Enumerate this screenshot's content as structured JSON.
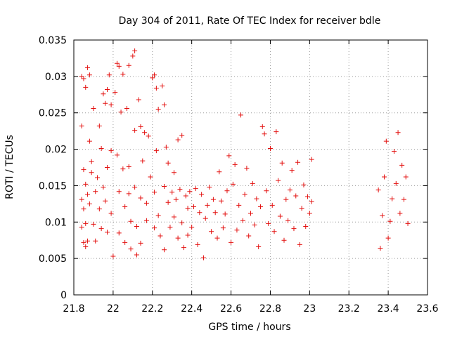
{
  "chart_data": {
    "type": "scatter",
    "title": "Day 304 of 2011, Rate Of TEC Index for receiver bdle",
    "xlabel": "GPS time / hours",
    "ylabel": "ROTI / TECUs",
    "xlim": [
      21.8,
      23.6
    ],
    "ylim": [
      0,
      0.035
    ],
    "x_ticks": [
      21.8,
      22.0,
      22.2,
      22.4,
      22.6,
      22.8,
      23.0,
      23.2,
      23.4,
      23.6
    ],
    "x_tick_labels": [
      "21.8",
      "22",
      "22.2",
      "22.4",
      "22.6",
      "22.8",
      "23",
      "23.2",
      "23.4",
      "23.6"
    ],
    "y_ticks": [
      0,
      0.005,
      0.01,
      0.015,
      0.02,
      0.025,
      0.03,
      0.035
    ],
    "y_tick_labels": [
      "0",
      "0.005",
      "0.01",
      "0.015",
      "0.02",
      "0.025",
      "0.03",
      "0.035"
    ],
    "grid": true,
    "marker": "+",
    "color": "#e3100f",
    "series": [
      {
        "name": "ROTI",
        "points": [
          [
            21.84,
            0.0232
          ],
          [
            21.84,
            0.03
          ],
          [
            21.85,
            0.0297
          ],
          [
            21.86,
            0.0285
          ],
          [
            21.87,
            0.0312
          ],
          [
            21.88,
            0.0302
          ],
          [
            21.85,
            0.0172
          ],
          [
            21.86,
            0.0152
          ],
          [
            21.84,
            0.0131
          ],
          [
            21.87,
            0.0138
          ],
          [
            21.85,
            0.0118
          ],
          [
            21.86,
            0.0098
          ],
          [
            21.84,
            0.0093
          ],
          [
            21.85,
            0.0072
          ],
          [
            21.86,
            0.0066
          ],
          [
            21.87,
            0.0074
          ],
          [
            21.88,
            0.0125
          ],
          [
            21.89,
            0.0168
          ],
          [
            21.88,
            0.0211
          ],
          [
            21.89,
            0.0183
          ],
          [
            21.9,
            0.0256
          ],
          [
            21.91,
            0.0142
          ],
          [
            21.9,
            0.0097
          ],
          [
            21.91,
            0.0074
          ],
          [
            21.92,
            0.0161
          ],
          [
            21.93,
            0.0232
          ],
          [
            21.93,
            0.0118
          ],
          [
            21.94,
            0.0201
          ],
          [
            21.95,
            0.0276
          ],
          [
            21.95,
            0.0148
          ],
          [
            21.94,
            0.0091
          ],
          [
            21.96,
            0.0263
          ],
          [
            21.97,
            0.0282
          ],
          [
            21.97,
            0.0175
          ],
          [
            21.96,
            0.0129
          ],
          [
            21.97,
            0.0086
          ],
          [
            21.98,
            0.0302
          ],
          [
            21.99,
            0.0261
          ],
          [
            21.99,
            0.0198
          ],
          [
            21.99,
            0.0112
          ],
          [
            22.0,
            0.0053
          ],
          [
            22.01,
            0.0278
          ],
          [
            22.02,
            0.0318
          ],
          [
            22.02,
            0.0192
          ],
          [
            22.03,
            0.0314
          ],
          [
            22.03,
            0.0142
          ],
          [
            22.03,
            0.0085
          ],
          [
            22.04,
            0.0251
          ],
          [
            22.05,
            0.0303
          ],
          [
            22.05,
            0.0173
          ],
          [
            22.06,
            0.0121
          ],
          [
            22.06,
            0.0072
          ],
          [
            22.07,
            0.0256
          ],
          [
            22.08,
            0.0315
          ],
          [
            22.08,
            0.0176
          ],
          [
            22.08,
            0.0139
          ],
          [
            22.09,
            0.0101
          ],
          [
            22.09,
            0.0063
          ],
          [
            22.1,
            0.0328
          ],
          [
            22.11,
            0.0335
          ],
          [
            22.11,
            0.0226
          ],
          [
            22.11,
            0.0148
          ],
          [
            22.12,
            0.0094
          ],
          [
            22.12,
            0.0055
          ],
          [
            22.13,
            0.0268
          ],
          [
            22.14,
            0.0231
          ],
          [
            22.14,
            0.0133
          ],
          [
            22.14,
            0.0071
          ],
          [
            22.15,
            0.0184
          ],
          [
            22.16,
            0.0223
          ],
          [
            22.17,
            0.0102
          ],
          [
            22.17,
            0.0126
          ],
          [
            22.18,
            0.0218
          ],
          [
            22.19,
            0.0162
          ],
          [
            22.2,
            0.0298
          ],
          [
            22.21,
            0.0302
          ],
          [
            22.21,
            0.0092
          ],
          [
            22.21,
            0.0141
          ],
          [
            22.22,
            0.0284
          ],
          [
            22.22,
            0.0198
          ],
          [
            22.23,
            0.0255
          ],
          [
            22.23,
            0.0109
          ],
          [
            22.24,
            0.0081
          ],
          [
            22.25,
            0.0287
          ],
          [
            22.26,
            0.0261
          ],
          [
            22.26,
            0.0149
          ],
          [
            22.26,
            0.0062
          ],
          [
            22.27,
            0.0203
          ],
          [
            22.28,
            0.0181
          ],
          [
            22.28,
            0.0127
          ],
          [
            22.29,
            0.0093
          ],
          [
            22.3,
            0.0141
          ],
          [
            22.31,
            0.0168
          ],
          [
            22.31,
            0.0107
          ],
          [
            22.32,
            0.0131
          ],
          [
            22.33,
            0.0213
          ],
          [
            22.33,
            0.0078
          ],
          [
            22.34,
            0.0145
          ],
          [
            22.35,
            0.0219
          ],
          [
            22.35,
            0.0099
          ],
          [
            22.36,
            0.0065
          ],
          [
            22.37,
            0.0136
          ],
          [
            22.38,
            0.0119
          ],
          [
            22.38,
            0.0082
          ],
          [
            22.39,
            0.0142
          ],
          [
            22.4,
            0.0093
          ],
          [
            22.41,
            0.0121
          ],
          [
            22.42,
            0.0146
          ],
          [
            22.43,
            0.0069
          ],
          [
            22.44,
            0.0113
          ],
          [
            22.45,
            0.0138
          ],
          [
            22.46,
            0.0051
          ],
          [
            22.47,
            0.0105
          ],
          [
            22.48,
            0.0123
          ],
          [
            22.49,
            0.0148
          ],
          [
            22.5,
            0.0087
          ],
          [
            22.51,
            0.0131
          ],
          [
            22.52,
            0.0113
          ],
          [
            22.53,
            0.0078
          ],
          [
            22.54,
            0.0169
          ],
          [
            22.55,
            0.0129
          ],
          [
            22.56,
            0.0092
          ],
          [
            22.57,
            0.0111
          ],
          [
            22.58,
            0.0143
          ],
          [
            22.59,
            0.0191
          ],
          [
            22.6,
            0.0072
          ],
          [
            22.61,
            0.0152
          ],
          [
            22.62,
            0.0179
          ],
          [
            22.63,
            0.0089
          ],
          [
            22.64,
            0.0123
          ],
          [
            22.65,
            0.0247
          ],
          [
            22.66,
            0.0102
          ],
          [
            22.67,
            0.0138
          ],
          [
            22.68,
            0.0174
          ],
          [
            22.69,
            0.0081
          ],
          [
            22.7,
            0.0112
          ],
          [
            22.71,
            0.0153
          ],
          [
            22.72,
            0.0096
          ],
          [
            22.73,
            0.0132
          ],
          [
            22.74,
            0.0066
          ],
          [
            22.75,
            0.0121
          ],
          [
            22.76,
            0.0231
          ],
          [
            22.77,
            0.0221
          ],
          [
            22.78,
            0.0143
          ],
          [
            22.79,
            0.0098
          ],
          [
            22.8,
            0.0201
          ],
          [
            22.81,
            0.0123
          ],
          [
            22.82,
            0.0087
          ],
          [
            22.83,
            0.0224
          ],
          [
            22.84,
            0.0157
          ],
          [
            22.85,
            0.0108
          ],
          [
            22.86,
            0.0181
          ],
          [
            22.87,
            0.0075
          ],
          [
            22.88,
            0.0131
          ],
          [
            22.89,
            0.0102
          ],
          [
            22.9,
            0.0144
          ],
          [
            22.91,
            0.0171
          ],
          [
            22.92,
            0.0091
          ],
          [
            22.93,
            0.0136
          ],
          [
            22.94,
            0.0182
          ],
          [
            22.95,
            0.0069
          ],
          [
            22.96,
            0.0119
          ],
          [
            22.97,
            0.0151
          ],
          [
            22.98,
            0.0094
          ],
          [
            22.99,
            0.0135
          ],
          [
            23.0,
            0.0112
          ],
          [
            23.01,
            0.0186
          ],
          [
            23.01,
            0.0128
          ],
          [
            23.35,
            0.0144
          ],
          [
            23.36,
            0.0064
          ],
          [
            23.37,
            0.0109
          ],
          [
            23.38,
            0.0162
          ],
          [
            23.39,
            0.0211
          ],
          [
            23.4,
            0.0078
          ],
          [
            23.41,
            0.0101
          ],
          [
            23.42,
            0.0132
          ],
          [
            23.43,
            0.0197
          ],
          [
            23.44,
            0.0153
          ],
          [
            23.45,
            0.0223
          ],
          [
            23.46,
            0.0112
          ],
          [
            23.47,
            0.0178
          ],
          [
            23.48,
            0.0131
          ],
          [
            23.49,
            0.0162
          ],
          [
            23.5,
            0.0098
          ]
        ]
      }
    ]
  }
}
